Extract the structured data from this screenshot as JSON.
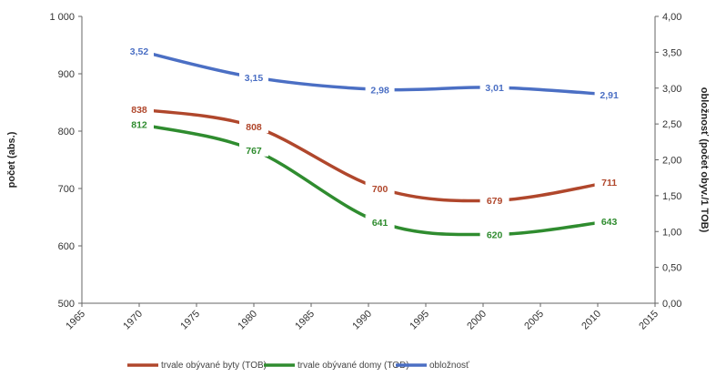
{
  "chart_data": {
    "type": "line",
    "x_ticks": [
      1965,
      1970,
      1975,
      1980,
      1985,
      1990,
      1995,
      2000,
      2005,
      2010,
      2015
    ],
    "y_left": {
      "label": "počet (abs.)",
      "ticks": [
        "500",
        "600",
        "700",
        "800",
        "900",
        "1 000"
      ],
      "lim": [
        500,
        1000
      ]
    },
    "y_right": {
      "label": "obložnosť (počet obyv./1 TOB)",
      "ticks": [
        "0,00",
        "0,50",
        "1,00",
        "1,50",
        "2,00",
        "2,50",
        "3,00",
        "3,50",
        "4,00"
      ],
      "lim": [
        0,
        4
      ]
    },
    "series": [
      {
        "name": "trvale obývané byty (TOB)",
        "axis": "left",
        "color": "#b0472c",
        "x": [
          1970,
          1980,
          1991,
          2001,
          2011
        ],
        "values": [
          838,
          808,
          700,
          679,
          711
        ],
        "labels": [
          "838",
          "808",
          "700",
          "679",
          "711"
        ]
      },
      {
        "name": "trvale obývané domy (TOD)",
        "axis": "left",
        "color": "#2f8c2f",
        "x": [
          1970,
          1980,
          1991,
          2001,
          2011
        ],
        "values": [
          812,
          767,
          641,
          620,
          643
        ],
        "labels": [
          "812",
          "767",
          "641",
          "620",
          "643"
        ]
      },
      {
        "name": "obložnosť",
        "axis": "right",
        "color": "#4b6fc4",
        "x": [
          1970,
          1980,
          1991,
          2001,
          2011
        ],
        "values": [
          3.52,
          3.15,
          2.98,
          3.01,
          2.91
        ],
        "labels": [
          "3,52",
          "3,15",
          "2,98",
          "3,01",
          "2,91"
        ]
      }
    ],
    "legend_position": "bottom",
    "grid": false
  }
}
